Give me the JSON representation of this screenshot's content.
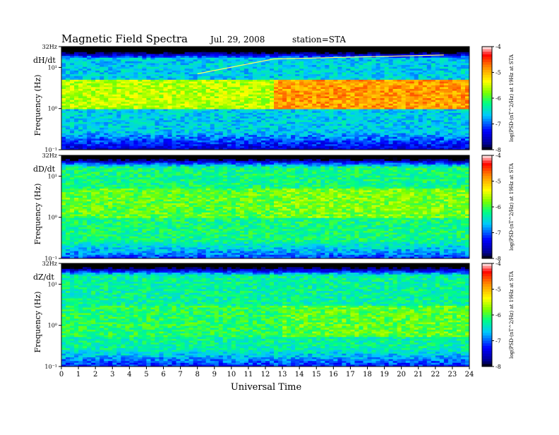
{
  "header": {
    "title": "Magnetic  Field  Spectra",
    "date": "Jul.  29, 2008",
    "station": "station=STA"
  },
  "colorbar": {
    "ticks": [
      "-4",
      "-5",
      "-6",
      "-7",
      "-8"
    ],
    "label": "log(PSD·(nT^2/Hz) at 19Hz at STA"
  },
  "chart_data": [
    {
      "type": "heatmap",
      "panel_label": "dH/dt",
      "ylabel": "Frequency  (Hz)",
      "xlabel": "",
      "y_tick_labels": [
        "32Hz",
        "10¹",
        "10⁰",
        "10⁻¹"
      ],
      "xlim": [
        0,
        24
      ],
      "ylim_hz": [
        0.1,
        32
      ],
      "y_scale": "log",
      "color_range": [
        -8,
        -4
      ],
      "colormap": [
        "#000000",
        "#0000a0",
        "#0000ff",
        "#00c8ff",
        "#00ff80",
        "#80ff00",
        "#ffff00",
        "#ff8000",
        "#ff0000",
        "#ffffff"
      ],
      "features": {
        "background_level": -6.6,
        "strong_band": {
          "f_low_hz": 1.0,
          "f_high_hz": 5.0,
          "level_before": -5.6,
          "level_after": -4.9,
          "change_hour": 12.6
        },
        "line_tone": {
          "hours": [
            8.0,
            12.5,
            22.5
          ],
          "freq_hz": [
            7,
            16,
            20
          ]
        }
      }
    },
    {
      "type": "heatmap",
      "panel_label": "dD/dt",
      "ylabel": "Frequency  (Hz)",
      "xlabel": "",
      "y_tick_labels": [
        "32Hz",
        "10¹",
        "10⁰",
        "10⁻¹"
      ],
      "xlim": [
        0,
        24
      ],
      "ylim_hz": [
        0.1,
        32
      ],
      "y_scale": "log",
      "color_range": [
        -8,
        -4
      ],
      "features": {
        "background_level": -6.2,
        "strong_band": {
          "f_low_hz": 1.0,
          "f_high_hz": 5.0,
          "level_before": -5.9,
          "level_after": -5.8,
          "change_hour": 12.6
        }
      }
    },
    {
      "type": "heatmap",
      "panel_label": "dZ/dt",
      "ylabel": "Frequency  (Hz)",
      "xlabel": "Universal Time",
      "y_tick_labels": [
        "32Hz",
        "10¹",
        "10⁰",
        "10⁻¹"
      ],
      "x_tick_labels": [
        "0",
        "1",
        "2",
        "3",
        "4",
        "5",
        "6",
        "7",
        "8",
        "9",
        "10",
        "11",
        "12",
        "13",
        "14",
        "15",
        "16",
        "17",
        "18",
        "19",
        "20",
        "21",
        "22",
        "23",
        "24"
      ],
      "xlim": [
        0,
        24
      ],
      "ylim_hz": [
        0.1,
        32
      ],
      "y_scale": "log",
      "color_range": [
        -8,
        -4
      ],
      "features": {
        "background_level": -6.3,
        "strong_band": {
          "f_low_hz": 0.5,
          "f_high_hz": 3.0,
          "level_before": -6.1,
          "level_after": -5.9,
          "change_hour": 13.0
        }
      }
    }
  ]
}
